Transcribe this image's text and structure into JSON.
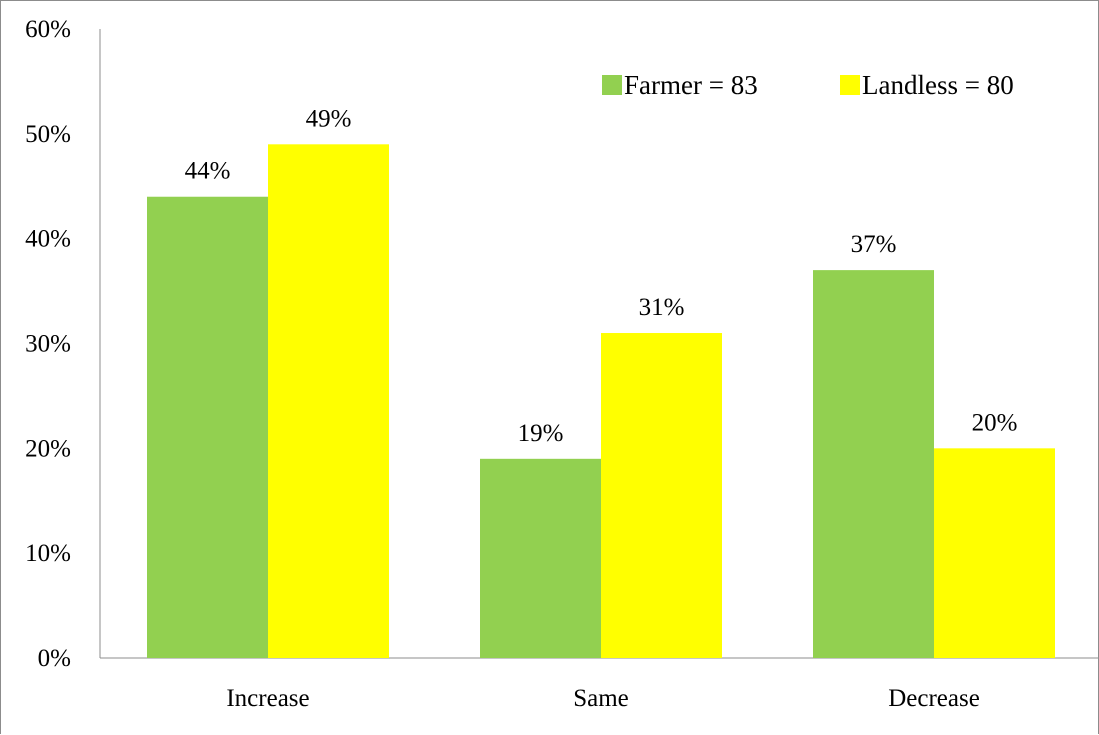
{
  "chart_data": {
    "type": "bar",
    "categories": [
      "Increase",
      "Same",
      "Decrease"
    ],
    "series": [
      {
        "name": "Farmer = 83",
        "values": [
          44,
          19,
          37
        ],
        "labels": [
          "44%",
          "19%",
          "37%"
        ],
        "color": "#92d050"
      },
      {
        "name": "Landless = 80",
        "values": [
          49,
          31,
          20
        ],
        "labels": [
          "49%",
          "31%",
          "20%"
        ],
        "color": "#ffff00"
      }
    ],
    "title": "",
    "xlabel": "",
    "ylabel": "",
    "ylim": [
      0,
      60
    ],
    "yticks": [
      {
        "value": 0,
        "label": "0%"
      },
      {
        "value": 10,
        "label": "10%"
      },
      {
        "value": 20,
        "label": "20%"
      },
      {
        "value": 30,
        "label": "30%"
      },
      {
        "value": 40,
        "label": "40%"
      },
      {
        "value": 50,
        "label": "50%"
      },
      {
        "value": 60,
        "label": "60%"
      }
    ],
    "grid": false,
    "legend_position": "top-right",
    "axis_color": "#8c8c8c"
  }
}
